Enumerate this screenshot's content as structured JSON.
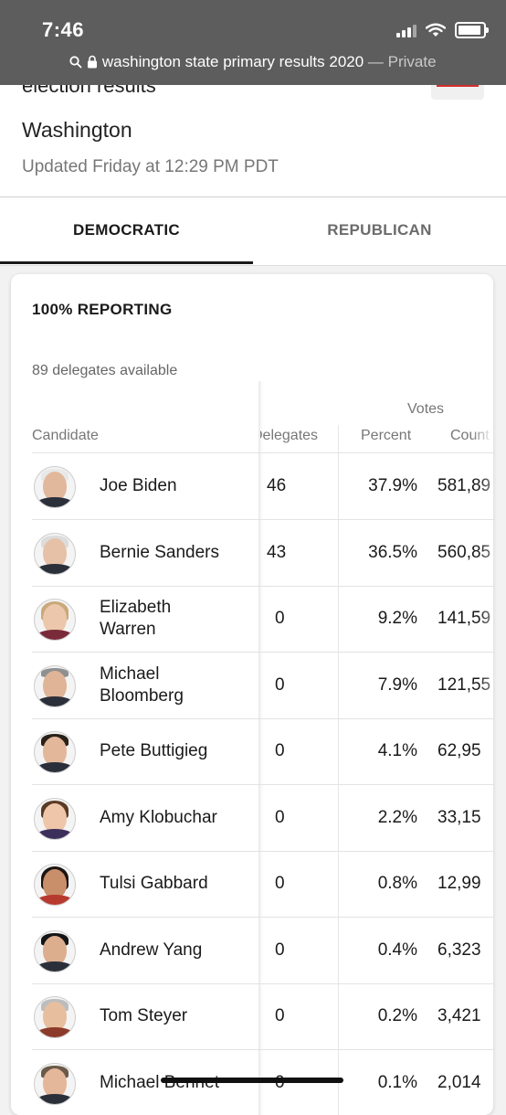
{
  "status_bar": {
    "time": "7:46"
  },
  "url_bar": {
    "url": "washington state primary results 2020",
    "separator": " — ",
    "mode": "Private"
  },
  "header": {
    "title_partial": "election results",
    "state": "Washington",
    "updated": "Updated Friday at 12:29 PM PDT"
  },
  "tabs": [
    {
      "label": "DEMOCRATIC",
      "active": true
    },
    {
      "label": "REPUBLICAN",
      "active": false
    }
  ],
  "results": {
    "reporting": "100% REPORTING",
    "delegates_available": "89 delegates available",
    "columns": {
      "votes_group": "Votes",
      "candidate": "Candidate",
      "delegates": "Delegates",
      "percent": "Percent",
      "count": "Count"
    },
    "rows": [
      {
        "name": "Joe Biden",
        "delegates": "46",
        "percent": "37.9%",
        "count": "581,89"
      },
      {
        "name": "Bernie Sanders",
        "delegates": "43",
        "percent": "36.5%",
        "count": "560,85"
      },
      {
        "name": "Elizabeth Warren",
        "delegates": "0",
        "percent": "9.2%",
        "count": "141,59"
      },
      {
        "name": "Michael Bloomberg",
        "delegates": "0",
        "percent": "7.9%",
        "count": "121,55"
      },
      {
        "name": "Pete Buttigieg",
        "delegates": "0",
        "percent": "4.1%",
        "count": "62,95"
      },
      {
        "name": "Amy Klobuchar",
        "delegates": "0",
        "percent": "2.2%",
        "count": "33,15"
      },
      {
        "name": "Tulsi Gabbard",
        "delegates": "0",
        "percent": "0.8%",
        "count": "12,99"
      },
      {
        "name": "Andrew Yang",
        "delegates": "0",
        "percent": "0.4%",
        "count": "6,323"
      },
      {
        "name": "Tom Steyer",
        "delegates": "0",
        "percent": "0.2%",
        "count": "3,421"
      },
      {
        "name": "Michael Bennet",
        "delegates": "0",
        "percent": "0.1%",
        "count": "2,014"
      }
    ]
  },
  "colors": {
    "active_tab_underline": "#1a1a1a",
    "status_bar_bg": "#5d5d5d",
    "header_accent": "#d62d2d"
  }
}
